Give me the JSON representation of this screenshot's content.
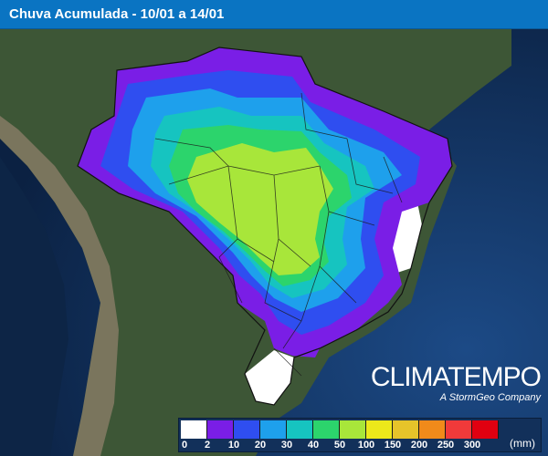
{
  "header": {
    "title": "Chuva Acumulada - 10/01 a 14/01"
  },
  "brand": {
    "name": "CLIMATEMPO",
    "tagline": "A StormGeo Company"
  },
  "legend": {
    "unit": "(mm)",
    "ticks": [
      "0",
      "2",
      "10",
      "20",
      "30",
      "40",
      "50",
      "100",
      "150",
      "200",
      "250",
      "300"
    ],
    "colors": [
      "#ffffff",
      "#7a1ee6",
      "#2f4ef0",
      "#1ea0ec",
      "#16c4c0",
      "#2cd46c",
      "#a8e63a",
      "#ece81a",
      "#e6c42a",
      "#f08a1a",
      "#f03a3a",
      "#e00010"
    ]
  },
  "map": {
    "background_colors": {
      "ocean": "#0e2a52",
      "land": "#3f5a38",
      "andes": "#8a7e6c",
      "dry_area": "#ffffff"
    },
    "rain_zones": [
      "0",
      "2",
      "10",
      "20",
      "30",
      "40",
      "50"
    ]
  }
}
